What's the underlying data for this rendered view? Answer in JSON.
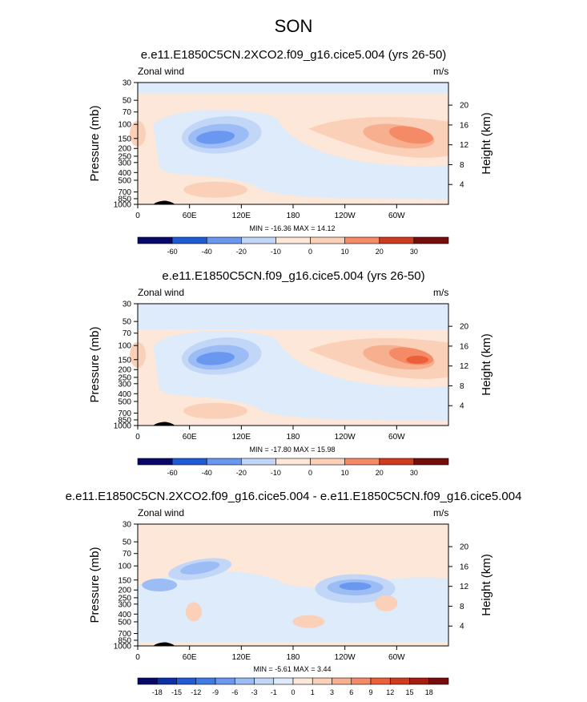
{
  "title": "SON",
  "panels": [
    {
      "title": "e.e11.E1850C5CN.2XCO2.f09_g16.cice5.004 (yrs 26-50)",
      "variable": "Zonal wind",
      "units": "m/s",
      "minmax_text": "MIN = -16.36  MAX =  14.12",
      "colorbar_labels": [
        "-60",
        "-40",
        "-20",
        "-10",
        "0",
        "10",
        "20",
        "30"
      ]
    },
    {
      "title": "e.e11.E1850C5CN.f09_g16.cice5.004 (yrs 26-50)",
      "variable": "Zonal wind",
      "units": "m/s",
      "minmax_text": "MIN = -17.80  MAX =  15.98",
      "colorbar_labels": [
        "-60",
        "-40",
        "-20",
        "-10",
        "0",
        "10",
        "20",
        "30"
      ]
    },
    {
      "title": "e.e11.E1850C5CN.2XCO2.f09_g16.cice5.004 - e.e11.E1850C5CN.f09_g16.cice5.004",
      "variable": "Zonal wind",
      "units": "m/s",
      "minmax_text": "MIN = -5.61  MAX =  3.44",
      "colorbar_labels": [
        "-18",
        "-15",
        "-12",
        "-9",
        "-6",
        "-3",
        "-1",
        "0",
        "1",
        "3",
        "6",
        "9",
        "12",
        "15",
        "18"
      ]
    }
  ],
  "colors": {
    "palette": [
      "#08086b",
      "#0a2fa6",
      "#1f5bd6",
      "#3e7be8",
      "#6a98f0",
      "#9bbcf5",
      "#c2d6f8",
      "#deebfb",
      "#fde7d9",
      "#fbd0b8",
      "#f7b08f",
      "#f48b66",
      "#eb5f3a",
      "#cf3b1e",
      "#a71d10",
      "#760d0b"
    ],
    "panel_fill": "#fde7d9",
    "weak_neg": "#deebfb",
    "neg1": "#c2d6f8",
    "neg2": "#9bbcf5",
    "neg3": "#6a98f0",
    "pos1": "#fbd0b8",
    "pos2": "#f7b08f",
    "pos3": "#f48b66",
    "pos4": "#eb5f3a",
    "pos5": "#cf3b1e",
    "topo": "#000000"
  },
  "chart_data": [
    {
      "type": "heatmap",
      "title": "e.e11.E1850C5CN.2XCO2.f09_g16.cice5.004 (yrs 26-50)",
      "variable": "Zonal wind",
      "units": "m/s",
      "xlabel": "",
      "ylabel": "Pressure (mb)",
      "ylabel_right": "Height (km)",
      "x_ticks": [
        "0",
        "60E",
        "120E",
        "180",
        "120W",
        "60W"
      ],
      "y_ticks": [
        "30",
        "50",
        "70",
        "100",
        "150",
        "200",
        "250",
        "300",
        "400",
        "500",
        "700",
        "850",
        "1000"
      ],
      "y_right_ticks": [
        "20",
        "16",
        "12",
        "8",
        "4"
      ],
      "min": -16.36,
      "max": 14.12,
      "levels": [
        -60,
        -40,
        -20,
        -10,
        0,
        10,
        20,
        30
      ]
    },
    {
      "type": "heatmap",
      "title": "e.e11.E1850C5CN.f09_g16.cice5.004 (yrs 26-50)",
      "variable": "Zonal wind",
      "units": "m/s",
      "xlabel": "",
      "ylabel": "Pressure (mb)",
      "ylabel_right": "Height (km)",
      "x_ticks": [
        "0",
        "60E",
        "120E",
        "180",
        "120W",
        "60W"
      ],
      "y_ticks": [
        "30",
        "50",
        "70",
        "100",
        "150",
        "200",
        "250",
        "300",
        "400",
        "500",
        "700",
        "850",
        "1000"
      ],
      "y_right_ticks": [
        "20",
        "16",
        "12",
        "8",
        "4"
      ],
      "min": -17.8,
      "max": 15.98,
      "levels": [
        -60,
        -40,
        -20,
        -10,
        0,
        10,
        20,
        30
      ]
    },
    {
      "type": "heatmap",
      "title": "e.e11.E1850C5CN.2XCO2.f09_g16.cice5.004 - e.e11.E1850C5CN.f09_g16.cice5.004",
      "variable": "Zonal wind",
      "units": "m/s",
      "xlabel": "",
      "ylabel": "Pressure (mb)",
      "ylabel_right": "Height (km)",
      "x_ticks": [
        "0",
        "60E",
        "120E",
        "180",
        "120W",
        "60W"
      ],
      "y_ticks": [
        "30",
        "50",
        "70",
        "100",
        "150",
        "200",
        "250",
        "300",
        "400",
        "500",
        "700",
        "850",
        "1000"
      ],
      "y_right_ticks": [
        "20",
        "16",
        "12",
        "8",
        "4"
      ],
      "min": -5.61,
      "max": 3.44,
      "levels": [
        -18,
        -15,
        -12,
        -9,
        -6,
        -3,
        -1,
        0,
        1,
        3,
        6,
        9,
        12,
        15,
        18
      ]
    }
  ]
}
